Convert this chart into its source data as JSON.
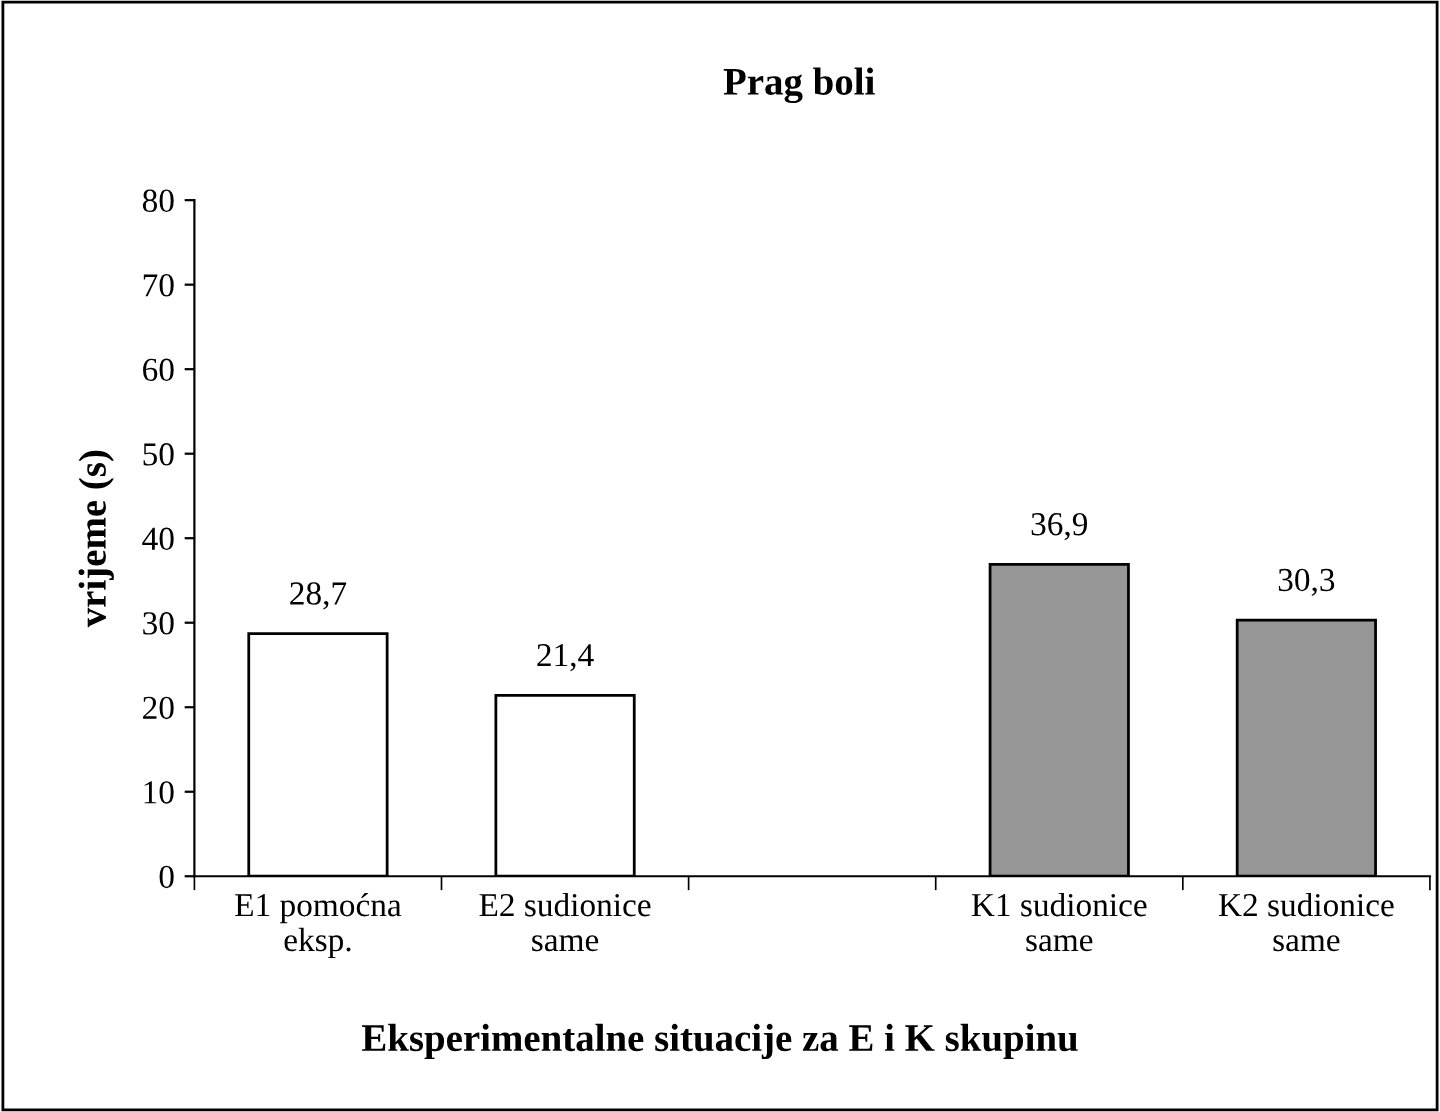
{
  "chart_data": {
    "type": "bar",
    "title": "Prag boli",
    "xlabel": "Eksperimentalne situacije za E i K skupinu",
    "ylabel": "vrijeme (s)",
    "categories": [
      "E1 pomoćna\neksp.",
      "E2 sudionice\nsame",
      null,
      "K1 sudionice\nsame",
      "K2 sudionice\nsame"
    ],
    "values": [
      28.7,
      21.4,
      null,
      36.9,
      30.3
    ],
    "colors": [
      "#ffffff",
      "#ffffff",
      null,
      "#969696",
      "#969696"
    ],
    "value_labels": [
      "28,7",
      "21,4",
      null,
      "36,9",
      "30,3"
    ],
    "ylim": [
      0,
      80
    ],
    "yticks": [
      0,
      10,
      20,
      30,
      40,
      50,
      60,
      70,
      80
    ],
    "grid": false,
    "legend": false
  }
}
